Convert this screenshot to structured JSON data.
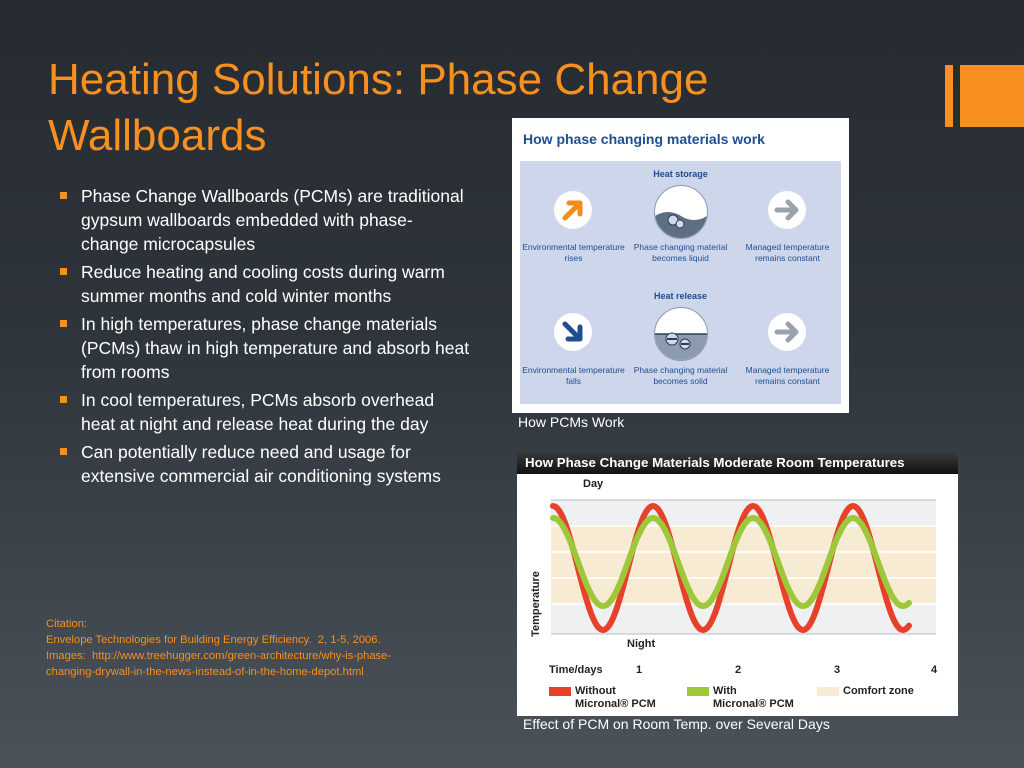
{
  "slide": {
    "title": "Heating Solutions: Phase Change Wallboards",
    "bullets": [
      "Phase Change Wallboards (PCMs) are traditional gypsum wallboards embedded with phase-change microcapsules",
      "Reduce heating and cooling costs during warm summer months and cold winter months",
      "In high temperatures, phase change materials (PCMs) thaw in high temperature and absorb heat from rooms",
      "In cool temperatures, PCMs absorb overhead heat at night and release heat during the day",
      "Can potentially reduce need and usage for extensive commercial air conditioning systems"
    ],
    "citation": [
      "Citation:",
      "Envelope Technologies for Building Energy Efficiency.  2, 1-5, 2006.",
      "Images:  http://www.treehugger.com/green-architecture/why-is-phase-",
      "changing-drywall-in-the-news-instead-of-in-the-home-depot.html"
    ]
  },
  "figure1": {
    "title": "How phase changing materials work",
    "caption": "How PCMs Work",
    "heat_storage": {
      "label": "Heat storage",
      "steps": [
        "Environmental temperature rises",
        "Phase changing material becomes liquid",
        "Managed temperature remains constant"
      ]
    },
    "heat_release": {
      "label": "Heat release",
      "steps": [
        "Environmental temperature falls",
        "Phase changing material becomes solid",
        "Managed temperature remains constant"
      ]
    }
  },
  "figure2": {
    "title": "How Phase Change Materials Moderate Room Temperatures",
    "caption": "Effect of PCM on Room Temp. over Several Days",
    "day_label": "Day",
    "night_label": "Night",
    "y_label": "Temperature",
    "x_label": "Time/days",
    "ticks": [
      "1",
      "2",
      "3",
      "4"
    ],
    "legend": {
      "without_line1": "Without",
      "without_line2": "Micronal® PCM",
      "with_line1": "With",
      "with_line2": "Micronal® PCM",
      "comfort": "Comfort zone"
    }
  },
  "colors": {
    "accent": "#f7901e",
    "without_pcm": "#e8412b",
    "with_pcm": "#9cc83a",
    "comfort_zone": "#f7ebd3",
    "diagram_blue": "#1d4e8f"
  }
}
